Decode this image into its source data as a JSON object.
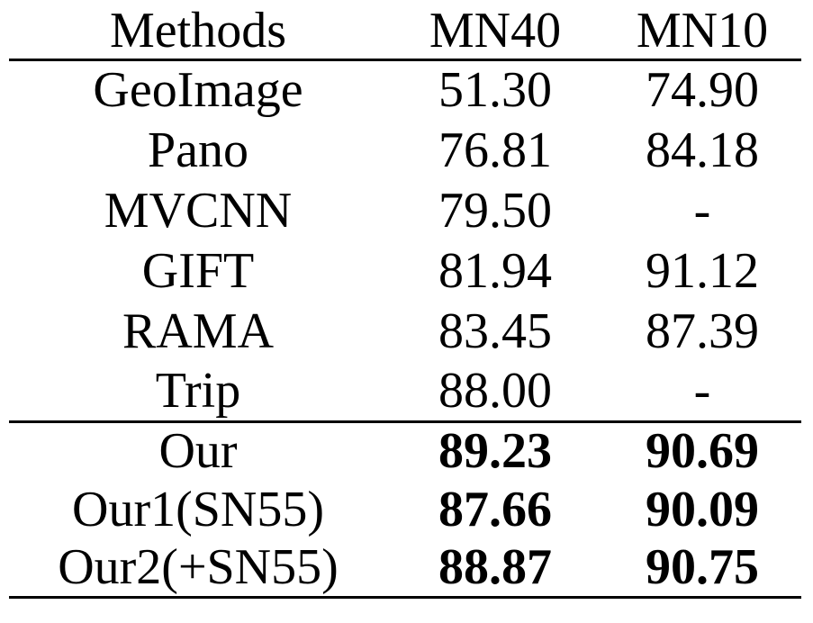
{
  "table": {
    "headers": [
      "Methods",
      "MN40",
      "MN10"
    ],
    "baselines": [
      {
        "method": "GeoImage",
        "mn40": "51.30",
        "mn10": "74.90"
      },
      {
        "method": "Pano",
        "mn40": "76.81",
        "mn10": "84.18"
      },
      {
        "method": "MVCNN",
        "mn40": "79.50",
        "mn10": "-"
      },
      {
        "method": "GIFT",
        "mn40": "81.94",
        "mn10": "91.12"
      },
      {
        "method": "RAMA",
        "mn40": "83.45",
        "mn10": "87.39"
      },
      {
        "method": "Trip",
        "mn40": "88.00",
        "mn10": "-"
      }
    ],
    "ours": [
      {
        "method": "Our",
        "mn40": "89.23",
        "mn10": "90.69"
      },
      {
        "method": "Our1(SN55)",
        "mn40": "87.66",
        "mn10": "90.09"
      },
      {
        "method": "Our2(+SN55)",
        "mn40": "88.87",
        "mn10": "90.75"
      }
    ]
  }
}
